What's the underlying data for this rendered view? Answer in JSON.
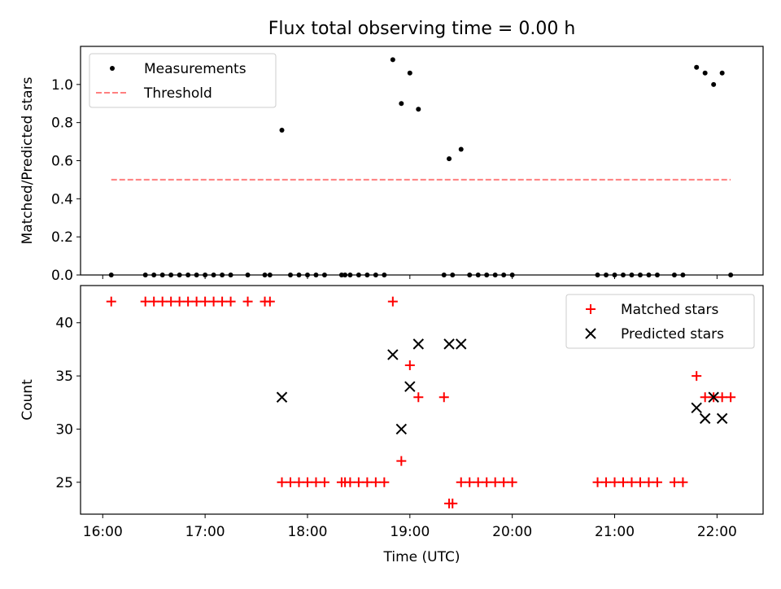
{
  "figure": {
    "title": "Flux total observing time = 0.00 h",
    "xlabel": "Time (UTC)",
    "x_ticks": [
      "16:00",
      "17:00",
      "18:00",
      "19:00",
      "20:00",
      "21:00",
      "22:00"
    ]
  },
  "chart_data": [
    {
      "type": "scatter",
      "ylabel": "Matched/Predicted stars",
      "ylim": [
        0,
        1.2
      ],
      "y_ticks": [
        "0.0",
        "0.2",
        "0.4",
        "0.6",
        "0.8",
        "1.0"
      ],
      "xlim": [
        "15:47",
        "22:27"
      ],
      "legend": {
        "position": "top-left",
        "entries": [
          "Measurements",
          "Threshold"
        ]
      },
      "series": [
        {
          "name": "Measurements",
          "color": "#000000",
          "marker": "dot",
          "points": [
            [
              "16:05",
              0
            ],
            [
              "16:25",
              0
            ],
            [
              "16:30",
              0
            ],
            [
              "16:35",
              0
            ],
            [
              "16:40",
              0
            ],
            [
              "16:45",
              0
            ],
            [
              "16:50",
              0
            ],
            [
              "16:55",
              0
            ],
            [
              "17:00",
              0
            ],
            [
              "17:05",
              0
            ],
            [
              "17:10",
              0
            ],
            [
              "17:15",
              0
            ],
            [
              "17:25",
              0
            ],
            [
              "17:35",
              0
            ],
            [
              "17:38",
              0
            ],
            [
              "17:45",
              0.76
            ],
            [
              "17:50",
              0
            ],
            [
              "17:55",
              0
            ],
            [
              "18:00",
              0
            ],
            [
              "18:05",
              0
            ],
            [
              "18:10",
              0
            ],
            [
              "18:20",
              0
            ],
            [
              "18:22",
              0
            ],
            [
              "18:25",
              0
            ],
            [
              "18:30",
              0
            ],
            [
              "18:35",
              0
            ],
            [
              "18:40",
              0
            ],
            [
              "18:45",
              0
            ],
            [
              "18:50",
              1.13
            ],
            [
              "18:55",
              0.9
            ],
            [
              "19:00",
              1.06
            ],
            [
              "19:05",
              0.87
            ],
            [
              "19:20",
              0
            ],
            [
              "19:23",
              0.61
            ],
            [
              "19:25",
              0
            ],
            [
              "19:30",
              0.66
            ],
            [
              "19:35",
              0
            ],
            [
              "19:40",
              0
            ],
            [
              "19:45",
              0
            ],
            [
              "19:50",
              0
            ],
            [
              "19:55",
              0
            ],
            [
              "20:00",
              0
            ],
            [
              "20:50",
              0
            ],
            [
              "20:55",
              0
            ],
            [
              "21:00",
              0
            ],
            [
              "21:05",
              0
            ],
            [
              "21:10",
              0
            ],
            [
              "21:15",
              0
            ],
            [
              "21:20",
              0
            ],
            [
              "21:25",
              0
            ],
            [
              "21:35",
              0
            ],
            [
              "21:40",
              0
            ],
            [
              "21:48",
              1.09
            ],
            [
              "21:53",
              1.06
            ],
            [
              "21:58",
              1.0
            ],
            [
              "22:03",
              1.06
            ],
            [
              "22:08",
              0
            ]
          ]
        },
        {
          "name": "Threshold",
          "color": "#ff7f7f",
          "style": "dashed",
          "x": [
            "16:05",
            "22:08"
          ],
          "y": [
            0.5,
            0.5
          ]
        }
      ]
    },
    {
      "type": "scatter",
      "ylabel": "Count",
      "ylim": [
        22,
        43.5
      ],
      "y_ticks": [
        "25",
        "30",
        "35",
        "40"
      ],
      "xlim": [
        "15:47",
        "22:27"
      ],
      "legend": {
        "position": "top-right",
        "entries": [
          "Matched stars",
          "Predicted stars"
        ]
      },
      "series": [
        {
          "name": "Matched stars",
          "color": "#ff0000",
          "marker": "plus",
          "points": [
            [
              "16:05",
              42
            ],
            [
              "16:25",
              42
            ],
            [
              "16:30",
              42
            ],
            [
              "16:35",
              42
            ],
            [
              "16:40",
              42
            ],
            [
              "16:45",
              42
            ],
            [
              "16:50",
              42
            ],
            [
              "16:55",
              42
            ],
            [
              "17:00",
              42
            ],
            [
              "17:05",
              42
            ],
            [
              "17:10",
              42
            ],
            [
              "17:15",
              42
            ],
            [
              "17:25",
              42
            ],
            [
              "17:35",
              42
            ],
            [
              "17:38",
              42
            ],
            [
              "17:45",
              25
            ],
            [
              "17:50",
              25
            ],
            [
              "17:55",
              25
            ],
            [
              "18:00",
              25
            ],
            [
              "18:05",
              25
            ],
            [
              "18:10",
              25
            ],
            [
              "18:20",
              25
            ],
            [
              "18:22",
              25
            ],
            [
              "18:25",
              25
            ],
            [
              "18:30",
              25
            ],
            [
              "18:35",
              25
            ],
            [
              "18:40",
              25
            ],
            [
              "18:45",
              25
            ],
            [
              "18:50",
              42
            ],
            [
              "18:55",
              27
            ],
            [
              "19:00",
              36
            ],
            [
              "19:05",
              33
            ],
            [
              "19:20",
              33
            ],
            [
              "19:23",
              23
            ],
            [
              "19:25",
              23
            ],
            [
              "19:30",
              25
            ],
            [
              "19:35",
              25
            ],
            [
              "19:40",
              25
            ],
            [
              "19:45",
              25
            ],
            [
              "19:50",
              25
            ],
            [
              "19:55",
              25
            ],
            [
              "20:00",
              25
            ],
            [
              "20:50",
              25
            ],
            [
              "20:55",
              25
            ],
            [
              "21:00",
              25
            ],
            [
              "21:05",
              25
            ],
            [
              "21:10",
              25
            ],
            [
              "21:15",
              25
            ],
            [
              "21:20",
              25
            ],
            [
              "21:25",
              25
            ],
            [
              "21:35",
              25
            ],
            [
              "21:40",
              25
            ],
            [
              "21:48",
              35
            ],
            [
              "21:53",
              33
            ],
            [
              "21:58",
              33
            ],
            [
              "22:03",
              33
            ],
            [
              "22:08",
              33
            ]
          ]
        },
        {
          "name": "Predicted stars",
          "color": "#000000",
          "marker": "x",
          "points": [
            [
              "17:45",
              33
            ],
            [
              "18:50",
              37
            ],
            [
              "18:55",
              30
            ],
            [
              "19:00",
              34
            ],
            [
              "19:05",
              38
            ],
            [
              "19:23",
              38
            ],
            [
              "19:30",
              38
            ],
            [
              "21:48",
              32
            ],
            [
              "21:53",
              31
            ],
            [
              "21:58",
              33
            ],
            [
              "22:03",
              31
            ]
          ]
        }
      ]
    }
  ]
}
